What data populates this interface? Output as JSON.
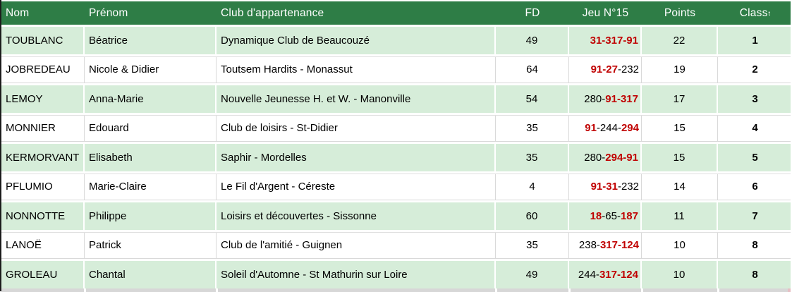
{
  "table": {
    "header": {
      "nom": "Nom",
      "prenom": "Prénom",
      "club": "Club d'appartenance",
      "fd": "FD",
      "jeu": "Jeu N°15",
      "points": "Points",
      "class_label": "Class",
      "class_sup": "t"
    },
    "rows": [
      {
        "nom": "TOUBLANC",
        "prenom": "Béatrice",
        "club": "Dynamique Club de Beaucouzé",
        "fd": "49",
        "jeu": [
          {
            "t": "31-317-91",
            "red": true
          }
        ],
        "points": "22",
        "classe": "1"
      },
      {
        "nom": "JOBREDEAU",
        "prenom": "Nicole & Didier",
        "club": "Toutsem Hardits - Monassut",
        "fd": "64",
        "jeu": [
          {
            "t": "91-27",
            "red": true
          },
          {
            "t": "-",
            "red": false
          },
          {
            "t": "232",
            "red": false
          }
        ],
        "points": "19",
        "classe": "2"
      },
      {
        "nom": "LEMOY",
        "prenom": "Anna-Marie",
        "club": "Nouvelle Jeunesse H. et W. - Manonville",
        "fd": "54",
        "jeu": [
          {
            "t": "280-",
            "red": false
          },
          {
            "t": "91-317",
            "red": true
          }
        ],
        "points": "17",
        "classe": "3"
      },
      {
        "nom": "MONNIER",
        "prenom": "Edouard",
        "club": "Club de loisirs - St-Didier",
        "fd": "35",
        "jeu": [
          {
            "t": "91",
            "red": true
          },
          {
            "t": "-244-",
            "red": false
          },
          {
            "t": "294",
            "red": true
          }
        ],
        "points": "15",
        "classe": "4"
      },
      {
        "nom": "KERMORVANT",
        "prenom": "Elisabeth",
        "club": "Saphir - Mordelles",
        "fd": "35",
        "jeu": [
          {
            "t": "280-",
            "red": false
          },
          {
            "t": "294-91",
            "red": true
          }
        ],
        "points": "15",
        "classe": "5"
      },
      {
        "nom": "PFLUMIO",
        "prenom": "Marie-Claire",
        "club": "Le Fil d'Argent - Céreste",
        "fd": "4",
        "jeu": [
          {
            "t": "91-31",
            "red": true
          },
          {
            "t": "-",
            "red": false
          },
          {
            "t": "232",
            "red": false
          }
        ],
        "points": "14",
        "classe": "6"
      },
      {
        "nom": "NONNOTTE",
        "prenom": "Philippe",
        "club": "Loisirs et découvertes - Sissonne",
        "fd": "60",
        "jeu": [
          {
            "t": "18",
            "red": true
          },
          {
            "t": "-65-",
            "red": false
          },
          {
            "t": "187",
            "red": true
          }
        ],
        "points": "11",
        "classe": "7"
      },
      {
        "nom": "LANOË",
        "prenom": "Patrick",
        "club": "Club de l'amitié - Guignen",
        "fd": "35",
        "jeu": [
          {
            "t": "238-",
            "red": false
          },
          {
            "t": "317-124",
            "red": true
          }
        ],
        "points": "10",
        "classe": "8"
      },
      {
        "nom": "GROLEAU",
        "prenom": "Chantal",
        "club": "Soleil d'Automne - St Mathurin sur Loire",
        "fd": "49",
        "jeu": [
          {
            "t": "244-",
            "red": false
          },
          {
            "t": "317-124",
            "red": true
          }
        ],
        "points": "10",
        "classe": "8",
        "error_marker": "points"
      }
    ]
  },
  "colors": {
    "header_green": "#2E7D46",
    "band_green": "#D6EDD9",
    "score_red": "#C00000",
    "grid_gray": "#D9D9D9",
    "left_border_dark": "#1C1C1C",
    "error_marker_green": "#1E7145"
  }
}
